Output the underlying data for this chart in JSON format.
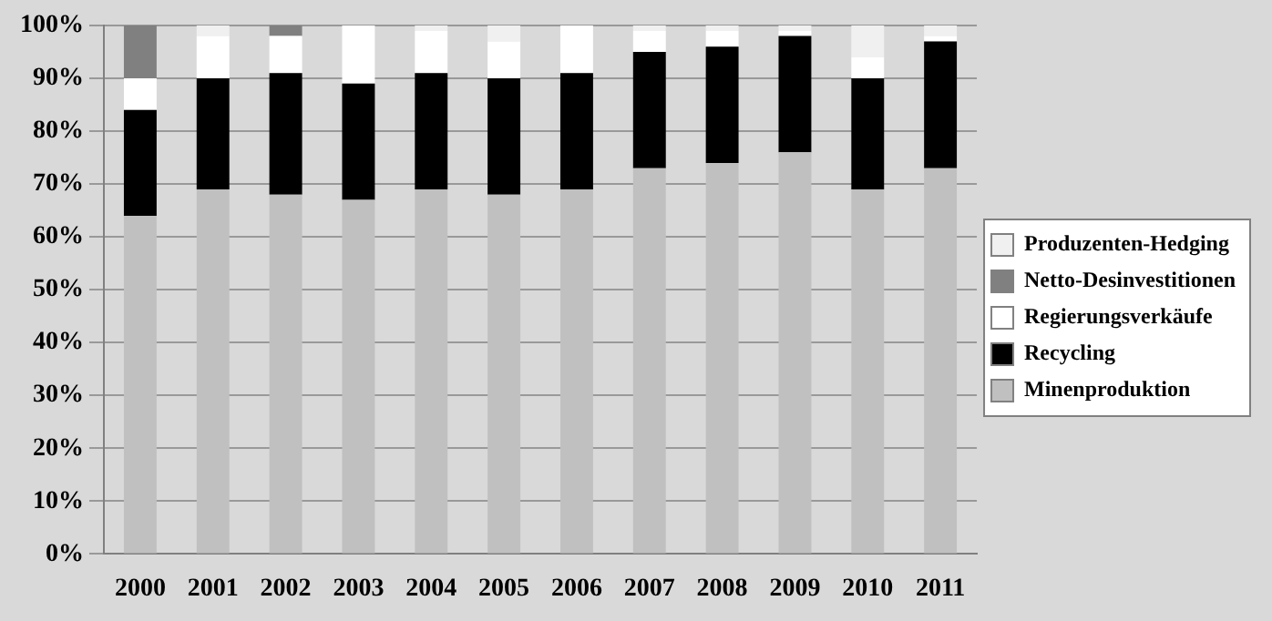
{
  "chart_data": {
    "type": "bar",
    "stacked": true,
    "categories": [
      "2000",
      "2001",
      "2002",
      "2003",
      "2004",
      "2005",
      "2006",
      "2007",
      "2008",
      "2009",
      "2010",
      "2011"
    ],
    "series": [
      {
        "name": "Minenproduktion",
        "color": "#c0c0c0",
        "values": [
          64,
          69,
          68,
          67,
          69,
          68,
          69,
          73,
          74,
          76,
          69,
          73
        ]
      },
      {
        "name": "Recycling",
        "color": "#000000",
        "values": [
          20,
          21,
          23,
          22,
          22,
          22,
          22,
          22,
          22,
          22,
          21,
          24
        ]
      },
      {
        "name": "Regierungsverkäufe",
        "color": "#ffffff",
        "values": [
          6,
          8,
          7,
          11,
          8,
          7,
          9,
          4,
          3,
          1,
          4,
          1
        ]
      },
      {
        "name": "Netto-Desinvestitionen",
        "color": "#808080",
        "values": [
          10,
          0,
          2,
          0,
          0,
          0,
          0,
          0,
          0,
          0,
          0,
          0
        ]
      },
      {
        "name": "Produzenten-Hedging",
        "color": "#f0f0f0",
        "values": [
          0,
          2,
          0,
          0,
          1,
          3,
          0,
          1,
          1,
          1,
          6,
          2
        ]
      }
    ],
    "ylim": [
      0,
      100
    ],
    "yticks": [
      {
        "value": 0,
        "label": "0%"
      },
      {
        "value": 10,
        "label": "10%"
      },
      {
        "value": 20,
        "label": "20%"
      },
      {
        "value": 30,
        "label": "30%"
      },
      {
        "value": 40,
        "label": "40%"
      },
      {
        "value": 50,
        "label": "50%"
      },
      {
        "value": 60,
        "label": "60%"
      },
      {
        "value": 70,
        "label": "70%"
      },
      {
        "value": 80,
        "label": "80%"
      },
      {
        "value": 90,
        "label": "90%"
      },
      {
        "value": 100,
        "label": "100%"
      }
    ],
    "grid": "y",
    "legend": "right"
  }
}
